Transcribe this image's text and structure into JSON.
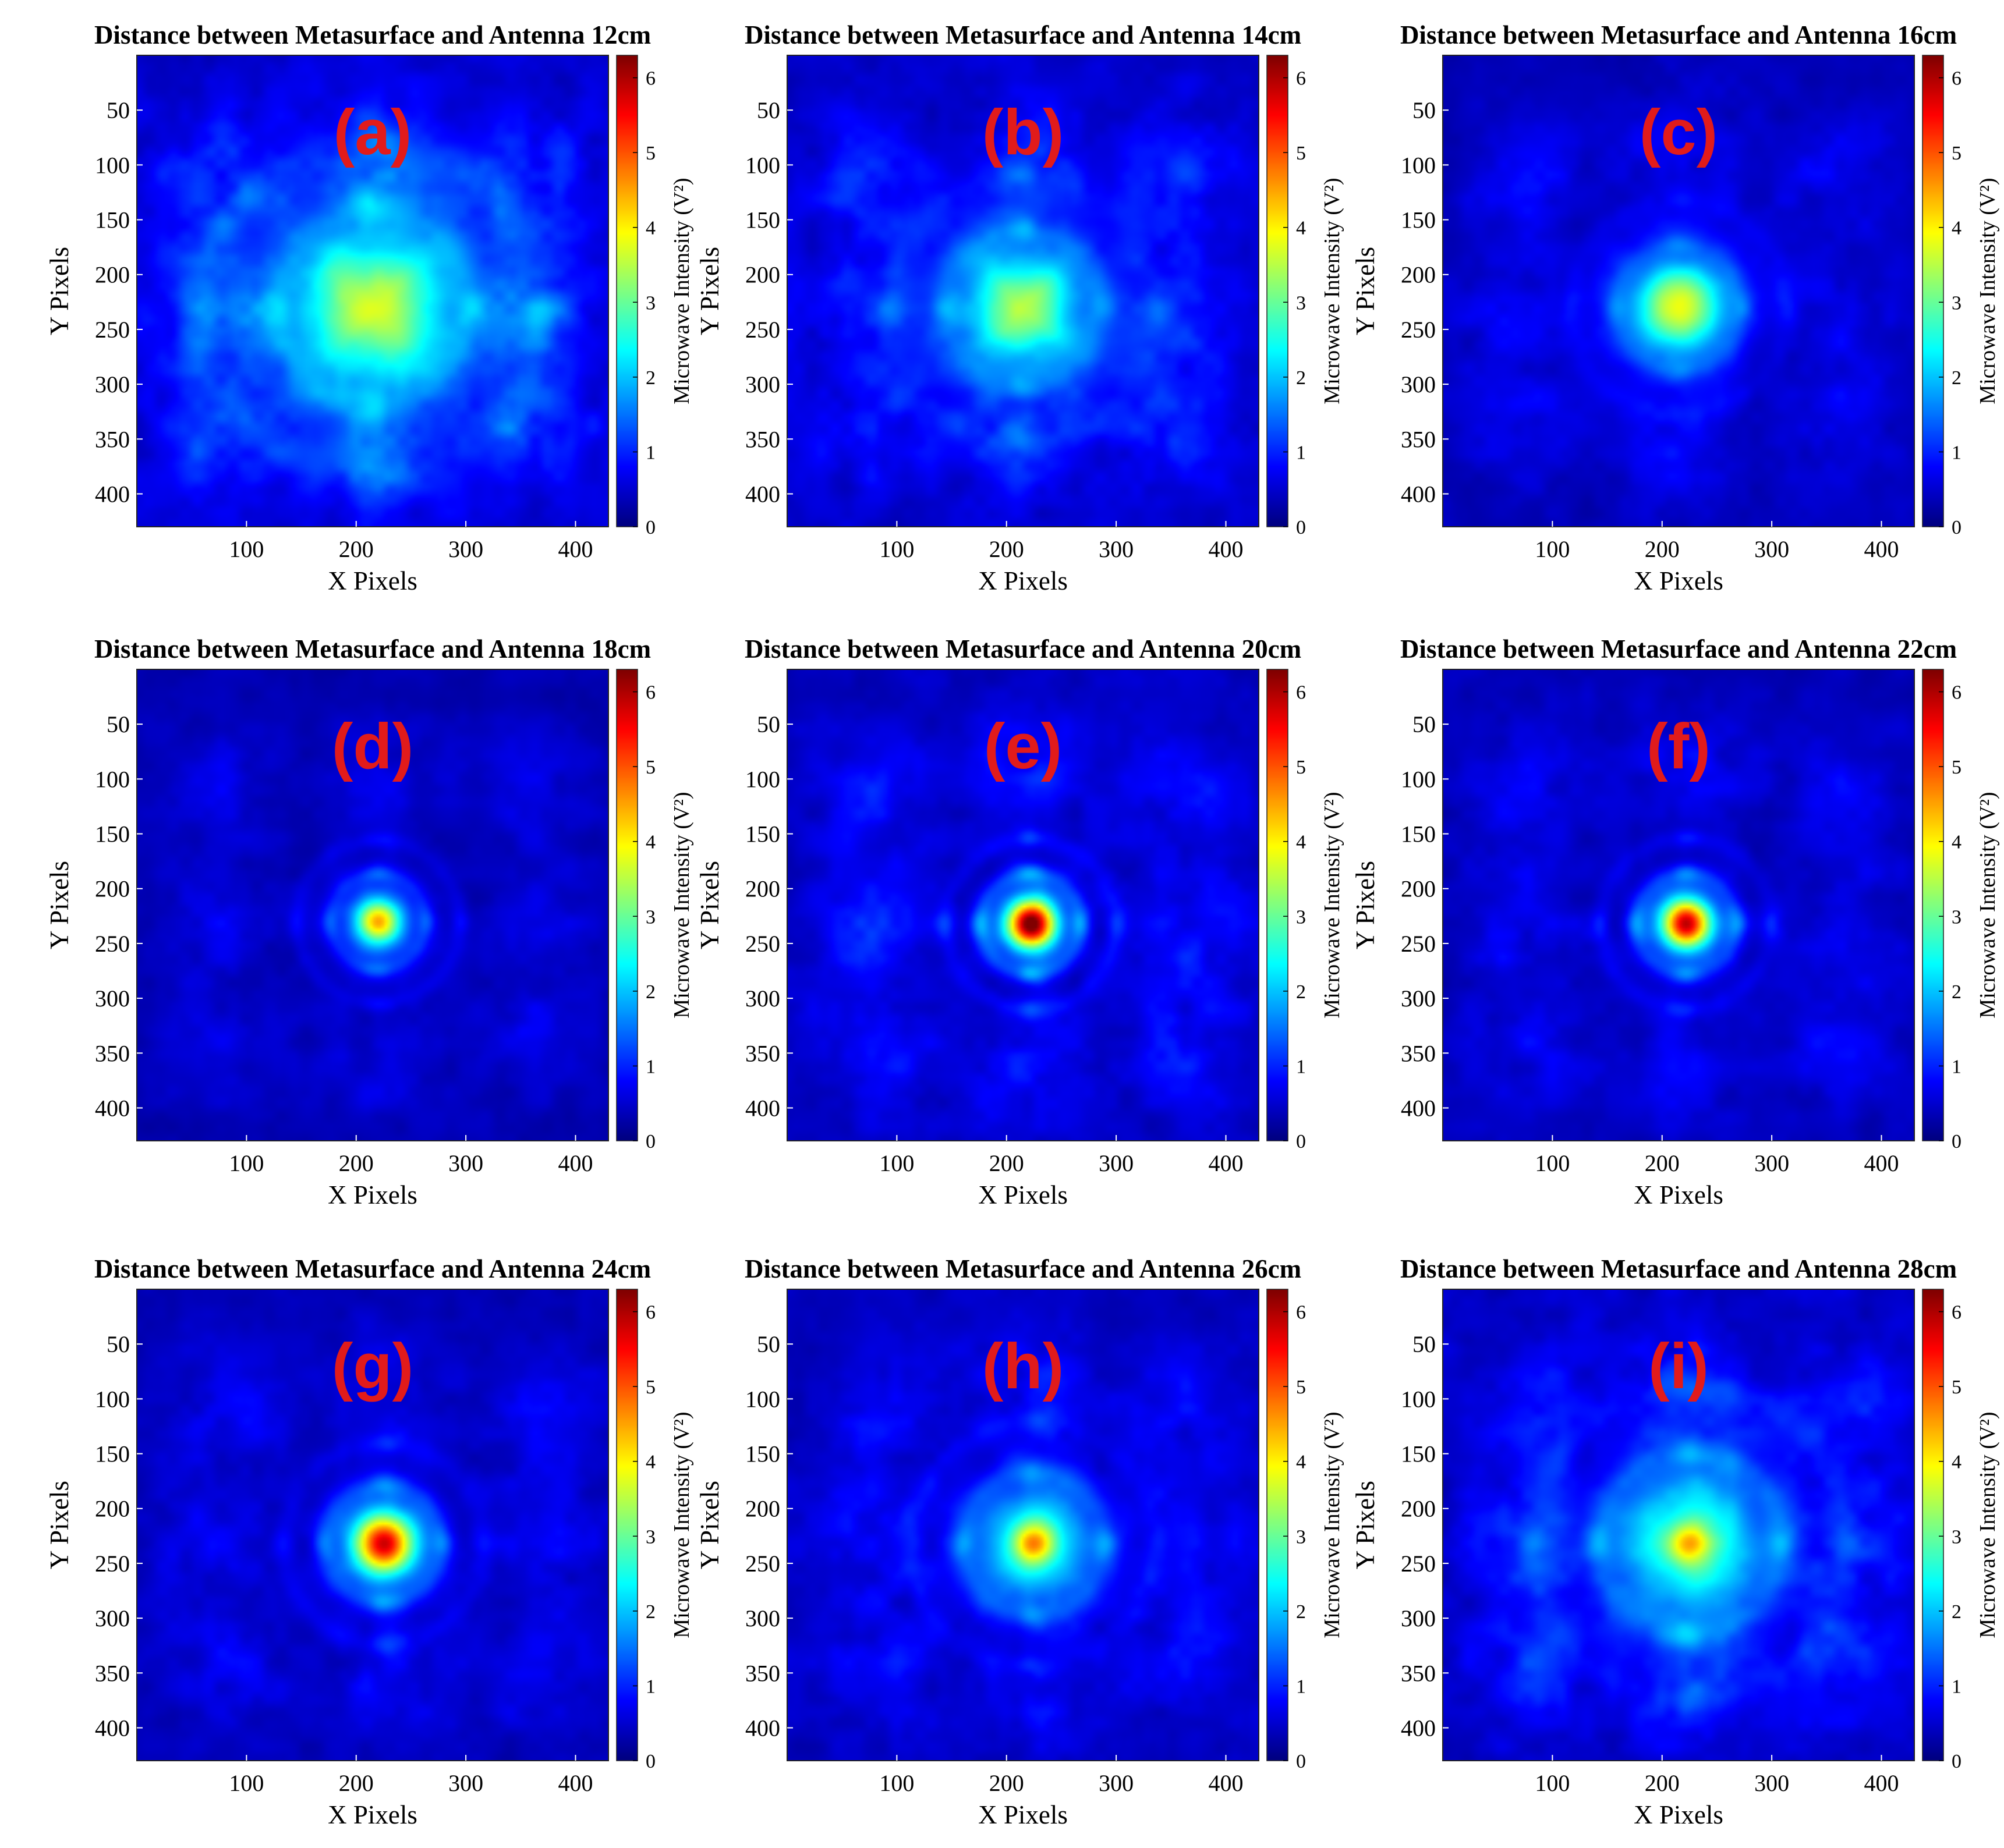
{
  "figure": {
    "axis_xlabel": "X Pixels",
    "axis_ylabel": "Y Pixels",
    "colorbar_label": "Microwave Intensity (V²)",
    "colormap": "jet",
    "colorbar_ticks": [
      0,
      1,
      2,
      3,
      4,
      5,
      6
    ],
    "colorbar_range": [
      0,
      6.3
    ]
  },
  "chart_data": [
    {
      "type": "heatmap",
      "panel": "(a)",
      "title": "Distance between Metasurface and Antenna 12cm",
      "distance_cm": 12,
      "xlabel": "X Pixels",
      "ylabel": "Y Pixels",
      "xlim": [
        0,
        430
      ],
      "ylim": [
        430,
        0
      ],
      "xticks": [
        100,
        200,
        300,
        400
      ],
      "yticks": [
        50,
        100,
        150,
        200,
        250,
        300,
        350,
        400
      ],
      "colorbar": {
        "label": "Microwave Intensity (V²)",
        "ticks": [
          0,
          1,
          2,
          3,
          4,
          5,
          6
        ],
        "range": [
          0,
          6.3
        ]
      },
      "peak": {
        "x": 215,
        "y": 230,
        "value": 3.2
      },
      "spot": {
        "shape": "square",
        "sigma": [
          52,
          50
        ],
        "halo": [
          80,
          78
        ],
        "halo_value": 1.5
      },
      "rings": {
        "value": 0.55,
        "radius": 90,
        "width": 14
      },
      "sidelobes": 0.6,
      "background": 0.5
    },
    {
      "type": "heatmap",
      "panel": "(b)",
      "title": "Distance between Metasurface and Antenna 14cm",
      "distance_cm": 14,
      "xlabel": "X Pixels",
      "ylabel": "Y Pixels",
      "xlim": [
        0,
        430
      ],
      "ylim": [
        430,
        0
      ],
      "xticks": [
        100,
        200,
        300,
        400
      ],
      "yticks": [
        50,
        100,
        150,
        200,
        250,
        300,
        350,
        400
      ],
      "colorbar": {
        "label": "Microwave Intensity (V²)",
        "ticks": [
          0,
          1,
          2,
          3,
          4,
          5,
          6
        ],
        "range": [
          0,
          6.3
        ]
      },
      "peak": {
        "x": 215,
        "y": 230,
        "value": 3.1
      },
      "spot": {
        "shape": "square",
        "sigma": [
          40,
          38
        ],
        "halo": [
          62,
          60
        ],
        "halo_value": 1.4
      },
      "rings": {
        "value": 0.6,
        "radius": 72,
        "width": 12
      },
      "sidelobes": 0.5,
      "background": 0.45
    },
    {
      "type": "heatmap",
      "panel": "(c)",
      "title": "Distance between Metasurface and Antenna 16cm",
      "distance_cm": 16,
      "xlabel": "X Pixels",
      "ylabel": "Y Pixels",
      "xlim": [
        0,
        430
      ],
      "ylim": [
        430,
        0
      ],
      "xticks": [
        100,
        200,
        300,
        400
      ],
      "yticks": [
        50,
        100,
        150,
        200,
        250,
        300,
        350,
        400
      ],
      "colorbar": {
        "label": "Microwave Intensity (V²)",
        "ticks": [
          0,
          1,
          2,
          3,
          4,
          5,
          6
        ],
        "range": [
          0,
          6.3
        ]
      },
      "peak": {
        "x": 215,
        "y": 230,
        "value": 3.5
      },
      "spot": {
        "shape": "round",
        "sigma": [
          26,
          26
        ],
        "halo": [
          46,
          44
        ],
        "halo_value": 1.3
      },
      "rings": {
        "value": 0.5,
        "radius": 58,
        "width": 10
      },
      "sidelobes": 0.35,
      "background": 0.35
    },
    {
      "type": "heatmap",
      "panel": "(d)",
      "title": "Distance between Metasurface and Antenna 18cm",
      "distance_cm": 18,
      "xlabel": "X Pixels",
      "ylabel": "Y Pixels",
      "xlim": [
        0,
        430
      ],
      "ylim": [
        430,
        0
      ],
      "xticks": [
        100,
        200,
        300,
        400
      ],
      "yticks": [
        50,
        100,
        150,
        200,
        250,
        300,
        350,
        400
      ],
      "colorbar": {
        "label": "Microwave Intensity (V²)",
        "ticks": [
          0,
          1,
          2,
          3,
          4,
          5,
          6
        ],
        "range": [
          0,
          6.3
        ]
      },
      "peak": {
        "x": 220,
        "y": 230,
        "value": 4.2
      },
      "spot": {
        "shape": "round",
        "sigma": [
          13,
          13
        ],
        "halo": [
          28,
          28
        ],
        "halo_value": 1.5
      },
      "rings": {
        "value": 0.7,
        "radius": 44,
        "width": 8
      },
      "sidelobes": 0.3,
      "background": 0.3
    },
    {
      "type": "heatmap",
      "panel": "(e)",
      "title": "Distance between Metasurface and Antenna 20cm",
      "distance_cm": 20,
      "xlabel": "X Pixels",
      "ylabel": "Y Pixels",
      "xlim": [
        0,
        430
      ],
      "ylim": [
        430,
        0
      ],
      "xticks": [
        100,
        200,
        300,
        400
      ],
      "yticks": [
        50,
        100,
        150,
        200,
        250,
        300,
        350,
        400
      ],
      "colorbar": {
        "label": "Microwave Intensity (V²)",
        "ticks": [
          0,
          1,
          2,
          3,
          4,
          5,
          6
        ],
        "range": [
          0,
          6.3
        ]
      },
      "peak": {
        "x": 222,
        "y": 232,
        "value": 6.2
      },
      "spot": {
        "shape": "round",
        "sigma": [
          14,
          14
        ],
        "halo": [
          24,
          24
        ],
        "halo_value": 2.0
      },
      "rings": {
        "value": 1.1,
        "radius": 46,
        "width": 9
      },
      "sidelobes": 0.45,
      "background": 0.4
    },
    {
      "type": "heatmap",
      "panel": "(f)",
      "title": "Distance between Metasurface and Antenna 22cm",
      "distance_cm": 22,
      "xlabel": "X Pixels",
      "ylabel": "Y Pixels",
      "xlim": [
        0,
        430
      ],
      "ylim": [
        430,
        0
      ],
      "xticks": [
        100,
        200,
        300,
        400
      ],
      "yticks": [
        50,
        100,
        150,
        200,
        250,
        300,
        350,
        400
      ],
      "colorbar": {
        "label": "Microwave Intensity (V²)",
        "ticks": [
          0,
          1,
          2,
          3,
          4,
          5,
          6
        ],
        "range": [
          0,
          6.3
        ]
      },
      "peak": {
        "x": 222,
        "y": 232,
        "value": 5.6
      },
      "spot": {
        "shape": "round",
        "sigma": [
          14,
          14
        ],
        "halo": [
          26,
          26
        ],
        "halo_value": 1.9
      },
      "rings": {
        "value": 0.9,
        "radius": 46,
        "width": 9
      },
      "sidelobes": 0.35,
      "background": 0.35
    },
    {
      "type": "heatmap",
      "panel": "(g)",
      "title": "Distance between Metasurface and Antenna 24cm",
      "distance_cm": 24,
      "xlabel": "X Pixels",
      "ylabel": "Y Pixels",
      "xlim": [
        0,
        430
      ],
      "ylim": [
        430,
        0
      ],
      "xticks": [
        100,
        200,
        300,
        400
      ],
      "yticks": [
        50,
        100,
        150,
        200,
        250,
        300,
        350,
        400
      ],
      "colorbar": {
        "label": "Microwave Intensity (V²)",
        "ticks": [
          0,
          1,
          2,
          3,
          4,
          5,
          6
        ],
        "range": [
          0,
          6.3
        ]
      },
      "peak": {
        "x": 225,
        "y": 232,
        "value": 5.5
      },
      "spot": {
        "shape": "round",
        "sigma": [
          17,
          17
        ],
        "halo": [
          32,
          32
        ],
        "halo_value": 2.0
      },
      "rings": {
        "value": 0.8,
        "radius": 54,
        "width": 10
      },
      "sidelobes": 0.35,
      "background": 0.35
    },
    {
      "type": "heatmap",
      "panel": "(h)",
      "title": "Distance between Metasurface and Antenna 26cm",
      "distance_cm": 26,
      "xlabel": "X Pixels",
      "ylabel": "Y Pixels",
      "xlim": [
        0,
        430
      ],
      "ylim": [
        430,
        0
      ],
      "xticks": [
        100,
        200,
        300,
        400
      ],
      "yticks": [
        50,
        100,
        150,
        200,
        250,
        300,
        350,
        400
      ],
      "colorbar": {
        "label": "Microwave Intensity (V²)",
        "ticks": [
          0,
          1,
          2,
          3,
          4,
          5,
          6
        ],
        "range": [
          0,
          6.3
        ]
      },
      "peak": {
        "x": 225,
        "y": 232,
        "value": 4.4
      },
      "spot": {
        "shape": "round",
        "sigma": [
          13,
          13
        ],
        "halo": [
          40,
          40
        ],
        "halo_value": 2.2
      },
      "rings": {
        "value": 0.7,
        "radius": 66,
        "width": 11
      },
      "sidelobes": 0.4,
      "background": 0.4
    },
    {
      "type": "heatmap",
      "panel": "(i)",
      "title": "Distance between Metasurface and Antenna 28cm",
      "distance_cm": 28,
      "xlabel": "X Pixels",
      "ylabel": "Y Pixels",
      "xlim": [
        0,
        430
      ],
      "ylim": [
        430,
        0
      ],
      "xticks": [
        100,
        200,
        300,
        400
      ],
      "yticks": [
        50,
        100,
        150,
        200,
        250,
        300,
        350,
        400
      ],
      "colorbar": {
        "label": "Microwave Intensity (V²)",
        "ticks": [
          0,
          1,
          2,
          3,
          4,
          5,
          6
        ],
        "range": [
          0,
          6.3
        ]
      },
      "peak": {
        "x": 225,
        "y": 232,
        "value": 4.0
      },
      "spot": {
        "shape": "round",
        "sigma": [
          13,
          13
        ],
        "halo": [
          52,
          52
        ],
        "halo_value": 2.3
      },
      "rings": {
        "value": 0.75,
        "radius": 84,
        "width": 13
      },
      "sidelobes": 0.5,
      "background": 0.45
    }
  ]
}
